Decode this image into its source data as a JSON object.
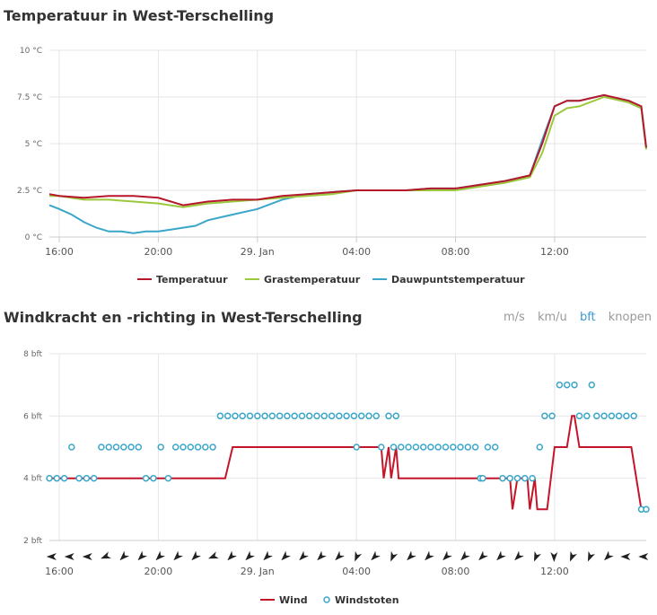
{
  "temp_chart": {
    "title": "Temperatuur in West-Terschelling"
  },
  "wind_chart": {
    "title": "Windkracht en -richting in West-Terschelling",
    "units": [
      "m/s",
      "km/u",
      "bft",
      "knopen"
    ],
    "active_unit": "bft"
  },
  "colors": {
    "temperatuur": "#b5172b",
    "grastemperatuur": "#9bc83c",
    "dauwpunt": "#3aa6c9",
    "wind": "#c4162a",
    "windstoten": "#3aa6c9"
  },
  "chart_data": [
    {
      "type": "line",
      "title": "Temperatuur in West-Terschelling",
      "x_start_label": "16:00",
      "x_tick_labels": [
        "16:00",
        "20:00",
        "29. Jan",
        "04:00",
        "08:00",
        "12:00"
      ],
      "y_tick_labels": [
        "0 °C",
        "2.5 °C",
        "5 °C",
        "7.5 °C",
        "10 °C"
      ],
      "ylim": [
        0,
        10
      ],
      "xlim_hours": [
        15.6,
        39.7
      ],
      "grid": true,
      "legend_position": "bottom",
      "series": [
        {
          "name": "Temperatuur",
          "points": [
            [
              15.6,
              2.3
            ],
            [
              16,
              2.2
            ],
            [
              17,
              2.1
            ],
            [
              18,
              2.2
            ],
            [
              19,
              2.2
            ],
            [
              20,
              2.1
            ],
            [
              21,
              1.7
            ],
            [
              22,
              1.9
            ],
            [
              23,
              2.0
            ],
            [
              24,
              2.0
            ],
            [
              25,
              2.2
            ],
            [
              26,
              2.3
            ],
            [
              27,
              2.4
            ],
            [
              28,
              2.5
            ],
            [
              29,
              2.5
            ],
            [
              30,
              2.5
            ],
            [
              31,
              2.6
            ],
            [
              32,
              2.6
            ],
            [
              33,
              2.8
            ],
            [
              34,
              3.0
            ],
            [
              35,
              3.3
            ],
            [
              35.5,
              5.0
            ],
            [
              36,
              7.0
            ],
            [
              36.5,
              7.3
            ],
            [
              37,
              7.3
            ],
            [
              38,
              7.6
            ],
            [
              39,
              7.3
            ],
            [
              39.5,
              7.0
            ],
            [
              39.7,
              4.8
            ]
          ]
        },
        {
          "name": "Grastemperatuur",
          "points": [
            [
              15.6,
              2.2
            ],
            [
              16,
              2.2
            ],
            [
              17,
              2.0
            ],
            [
              18,
              2.0
            ],
            [
              19,
              1.9
            ],
            [
              20,
              1.8
            ],
            [
              21,
              1.6
            ],
            [
              22,
              1.8
            ],
            [
              23,
              1.9
            ],
            [
              24,
              2.0
            ],
            [
              25,
              2.1
            ],
            [
              26,
              2.2
            ],
            [
              27,
              2.3
            ],
            [
              28,
              2.5
            ],
            [
              29,
              2.5
            ],
            [
              30,
              2.5
            ],
            [
              31,
              2.5
            ],
            [
              32,
              2.5
            ],
            [
              33,
              2.7
            ],
            [
              34,
              2.9
            ],
            [
              35,
              3.2
            ],
            [
              35.5,
              4.5
            ],
            [
              36,
              6.5
            ],
            [
              36.5,
              6.9
            ],
            [
              37,
              7.0
            ],
            [
              38,
              7.5
            ],
            [
              39,
              7.2
            ],
            [
              39.5,
              6.9
            ],
            [
              39.7,
              4.7
            ]
          ]
        },
        {
          "name": "Dauwpuntstemperatuur",
          "points": [
            [
              15.6,
              1.7
            ],
            [
              16,
              1.5
            ],
            [
              16.5,
              1.2
            ],
            [
              17,
              0.8
            ],
            [
              17.5,
              0.5
            ],
            [
              18,
              0.3
            ],
            [
              18.5,
              0.3
            ],
            [
              19,
              0.2
            ],
            [
              19.5,
              0.3
            ],
            [
              20,
              0.3
            ],
            [
              20.5,
              0.4
            ],
            [
              21,
              0.5
            ],
            [
              21.5,
              0.6
            ],
            [
              22,
              0.9
            ],
            [
              23,
              1.2
            ],
            [
              24,
              1.5
            ],
            [
              25,
              2.0
            ],
            [
              26,
              2.3
            ],
            [
              27,
              2.4
            ],
            [
              28,
              2.5
            ],
            [
              29,
              2.5
            ],
            [
              30,
              2.5
            ],
            [
              31,
              2.6
            ],
            [
              32,
              2.6
            ],
            [
              33,
              2.8
            ],
            [
              34,
              3.0
            ],
            [
              35,
              3.3
            ],
            [
              35.5,
              5.2
            ],
            [
              36,
              7.0
            ],
            [
              36.5,
              7.3
            ],
            [
              37,
              7.3
            ],
            [
              38,
              7.6
            ],
            [
              39,
              7.2
            ],
            [
              39.5,
              6.9
            ],
            [
              39.7,
              4.7
            ]
          ]
        }
      ]
    },
    {
      "type": "line",
      "title": "Windkracht en -richting in West-Terschelling",
      "x_tick_labels": [
        "16:00",
        "20:00",
        "29. Jan",
        "04:00",
        "08:00",
        "12:00"
      ],
      "y_tick_labels": [
        "2 bft",
        "4 bft",
        "6 bft",
        "8 bft"
      ],
      "ylim": [
        2,
        8
      ],
      "xlim_hours": [
        15.6,
        39.7
      ],
      "grid": true,
      "legend_position": "bottom",
      "series": [
        {
          "name": "Wind",
          "points": [
            [
              15.6,
              4
            ],
            [
              22.7,
              4
            ],
            [
              23,
              5
            ],
            [
              28.2,
              5
            ],
            [
              28.5,
              5
            ],
            [
              29,
              5
            ],
            [
              29.1,
              4
            ],
            [
              29.3,
              5
            ],
            [
              29.4,
              4
            ],
            [
              29.6,
              5
            ],
            [
              29.7,
              4
            ],
            [
              33.8,
              4
            ],
            [
              34.2,
              4
            ],
            [
              34.3,
              3
            ],
            [
              34.5,
              4
            ],
            [
              34.9,
              4
            ],
            [
              35,
              3
            ],
            [
              35.2,
              4
            ],
            [
              35.3,
              3
            ],
            [
              35.7,
              3
            ],
            [
              36,
              5
            ],
            [
              36.5,
              5
            ],
            [
              36.7,
              6
            ],
            [
              36.8,
              6
            ],
            [
              37,
              5
            ],
            [
              39.1,
              5
            ],
            [
              39.5,
              3
            ]
          ]
        },
        {
          "name": "Windstoten",
          "points": [
            [
              15.6,
              4
            ],
            [
              15.9,
              4
            ],
            [
              16.2,
              4
            ],
            [
              16.5,
              5
            ],
            [
              16.8,
              4
            ],
            [
              17.1,
              4
            ],
            [
              17.4,
              4
            ],
            [
              17.7,
              5
            ],
            [
              18.0,
              5
            ],
            [
              18.3,
              5
            ],
            [
              18.6,
              5
            ],
            [
              18.9,
              5
            ],
            [
              19.2,
              5
            ],
            [
              19.5,
              4
            ],
            [
              19.8,
              4
            ],
            [
              20.1,
              5
            ],
            [
              20.4,
              4
            ],
            [
              20.7,
              5
            ],
            [
              21.0,
              5
            ],
            [
              21.3,
              5
            ],
            [
              21.6,
              5
            ],
            [
              21.9,
              5
            ],
            [
              22.2,
              5
            ],
            [
              22.5,
              6
            ],
            [
              22.8,
              6
            ],
            [
              23.1,
              6
            ],
            [
              23.4,
              6
            ],
            [
              23.7,
              6
            ],
            [
              24.0,
              6
            ],
            [
              24.3,
              6
            ],
            [
              24.6,
              6
            ],
            [
              24.9,
              6
            ],
            [
              25.2,
              6
            ],
            [
              25.5,
              6
            ],
            [
              25.8,
              6
            ],
            [
              26.1,
              6
            ],
            [
              26.4,
              6
            ],
            [
              26.7,
              6
            ],
            [
              27.0,
              6
            ],
            [
              27.3,
              6
            ],
            [
              27.6,
              6
            ],
            [
              27.9,
              6
            ],
            [
              28.0,
              5
            ],
            [
              28.2,
              6
            ],
            [
              28.5,
              6
            ],
            [
              28.8,
              6
            ],
            [
              29.0,
              5
            ],
            [
              29.3,
              6
            ],
            [
              29.5,
              5
            ],
            [
              29.6,
              6
            ],
            [
              29.8,
              5
            ],
            [
              30.1,
              5
            ],
            [
              30.4,
              5
            ],
            [
              30.7,
              5
            ],
            [
              31.0,
              5
            ],
            [
              31.3,
              5
            ],
            [
              31.6,
              5
            ],
            [
              31.9,
              5
            ],
            [
              32.2,
              5
            ],
            [
              32.5,
              5
            ],
            [
              32.8,
              5
            ],
            [
              33.0,
              4
            ],
            [
              33.1,
              4
            ],
            [
              33.3,
              5
            ],
            [
              33.6,
              5
            ],
            [
              33.9,
              4
            ],
            [
              34.2,
              4
            ],
            [
              34.5,
              4
            ],
            [
              34.8,
              4
            ],
            [
              35.1,
              4
            ],
            [
              35.4,
              5
            ],
            [
              35.6,
              6
            ],
            [
              35.9,
              6
            ],
            [
              36.2,
              7
            ],
            [
              36.5,
              7
            ],
            [
              36.8,
              7
            ],
            [
              37.0,
              6
            ],
            [
              37.3,
              6
            ],
            [
              37.5,
              7
            ],
            [
              37.7,
              6
            ],
            [
              38.0,
              6
            ],
            [
              38.3,
              6
            ],
            [
              38.6,
              6
            ],
            [
              38.9,
              6
            ],
            [
              39.2,
              6
            ],
            [
              39.5,
              3
            ],
            [
              39.7,
              3
            ]
          ]
        }
      ],
      "wind_direction_arrows": [
        "W",
        "W",
        "W",
        "WSW",
        "SW",
        "SW",
        "SW",
        "SW",
        "SW",
        "WSW",
        "SW",
        "SW",
        "SW",
        "SW",
        "SW",
        "SW",
        "SW",
        "SSW",
        "SW",
        "SSW",
        "SW",
        "SW",
        "SW",
        "SW",
        "SW",
        "SW",
        "SW",
        "SSW",
        "S",
        "SSW",
        "SSW",
        "SW",
        "W",
        "W"
      ]
    }
  ]
}
